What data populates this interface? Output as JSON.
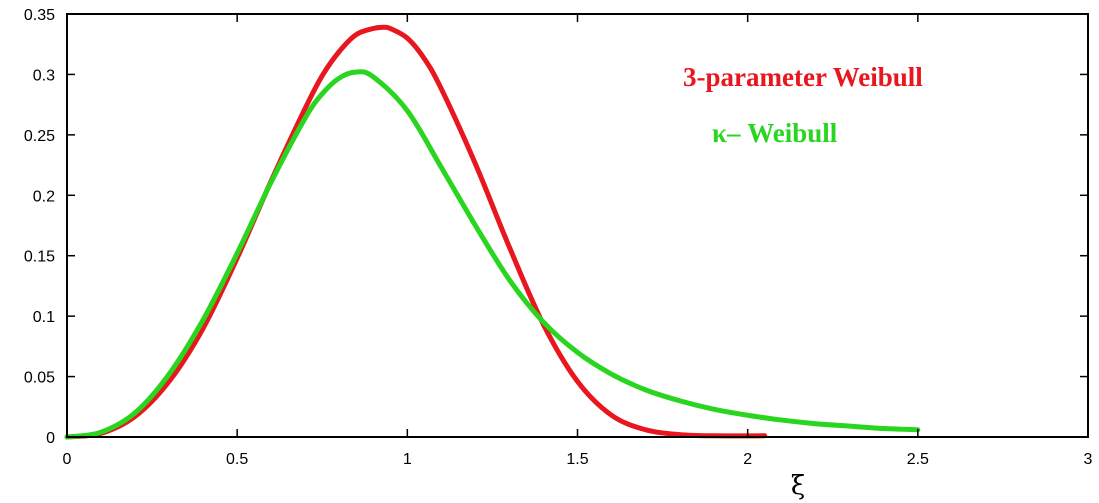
{
  "chart_data": {
    "type": "line",
    "xlabel": "ξ",
    "ylabel": "",
    "xlim": [
      0,
      3
    ],
    "ylim": [
      0,
      0.35
    ],
    "xticks": [
      "0",
      "0.5",
      "1",
      "1.5",
      "2",
      "2.5",
      "3"
    ],
    "yticks": [
      "0",
      "0.05",
      "0.1",
      "0.15",
      "0.2",
      "0.25",
      "0.3",
      "0.35"
    ],
    "grid": false,
    "legend_placement": "top-right",
    "series": [
      {
        "name": "3-parameter Weibull",
        "color": "#e8161f",
        "x": [
          0,
          0.1,
          0.2,
          0.3,
          0.4,
          0.5,
          0.6,
          0.7,
          0.75,
          0.8,
          0.85,
          0.9,
          0.93,
          0.95,
          1.0,
          1.05,
          1.1,
          1.2,
          1.3,
          1.4,
          1.5,
          1.6,
          1.7,
          1.8,
          1.9,
          2.05
        ],
        "y": [
          0,
          0.003,
          0.017,
          0.046,
          0.09,
          0.148,
          0.212,
          0.272,
          0.299,
          0.319,
          0.333,
          0.338,
          0.339,
          0.338,
          0.33,
          0.313,
          0.288,
          0.226,
          0.157,
          0.093,
          0.046,
          0.018,
          0.006,
          0.002,
          0.001,
          0.001
        ]
      },
      {
        "name": "κ– Weibull",
        "color": "#2ad51f",
        "x": [
          0,
          0.1,
          0.2,
          0.3,
          0.4,
          0.5,
          0.6,
          0.7,
          0.75,
          0.8,
          0.85,
          0.9,
          1.0,
          1.1,
          1.2,
          1.3,
          1.4,
          1.5,
          1.6,
          1.7,
          1.8,
          1.9,
          2.0,
          2.1,
          2.2,
          2.3,
          2.4,
          2.5
        ],
        "y": [
          0,
          0.004,
          0.02,
          0.052,
          0.097,
          0.152,
          0.211,
          0.264,
          0.284,
          0.297,
          0.302,
          0.298,
          0.27,
          0.223,
          0.175,
          0.13,
          0.095,
          0.07,
          0.052,
          0.039,
          0.03,
          0.023,
          0.018,
          0.014,
          0.011,
          0.009,
          0.007,
          0.006
        ]
      }
    ]
  }
}
